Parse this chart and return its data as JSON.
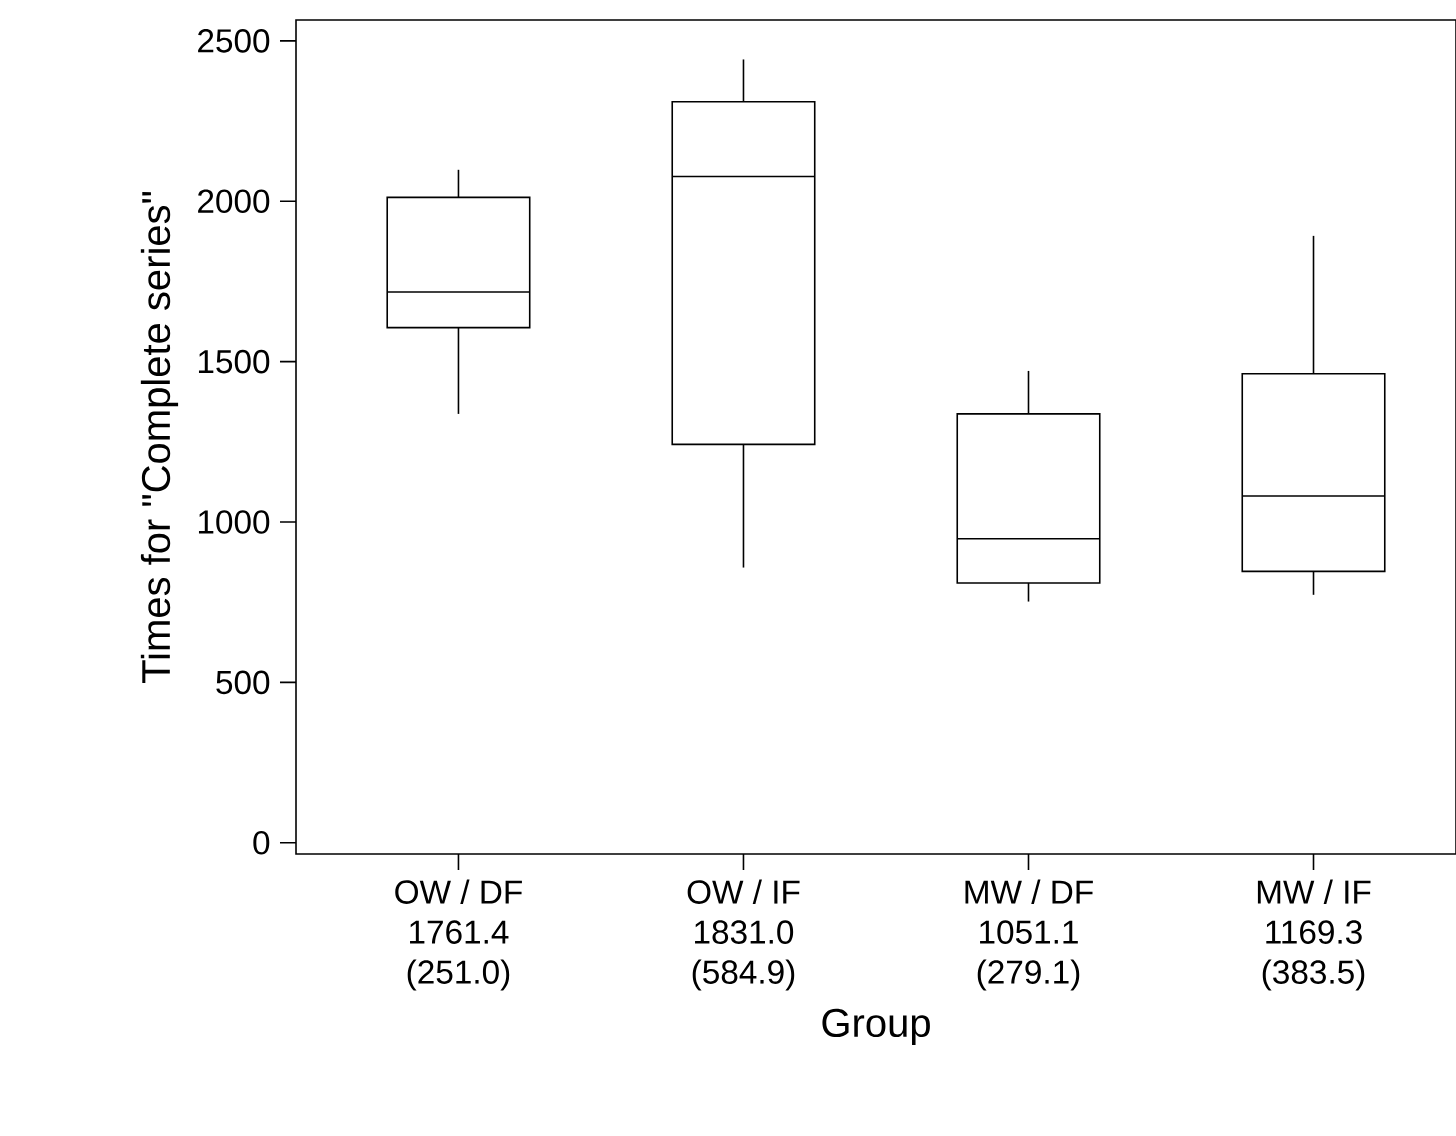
{
  "chart_data": {
    "type": "box",
    "xlabel": "Group",
    "ylabel": "Times for \"Complete series\"",
    "categories": [
      "OW / DF",
      "OW / IF",
      "MW / DF",
      "MW / IF"
    ],
    "boxes": [
      {
        "low": 1337,
        "q1": 1606,
        "median": 1717,
        "q3": 2012,
        "high": 2098
      },
      {
        "low": 858,
        "q1": 1242,
        "median": 2077,
        "q3": 2310,
        "high": 2442
      },
      {
        "low": 752,
        "q1": 810,
        "median": 948,
        "q3": 1337,
        "high": 1471
      },
      {
        "low": 773,
        "q1": 846,
        "median": 1081,
        "q3": 1462,
        "high": 1892
      }
    ],
    "annotations": [
      "1761.4",
      "(251.0)",
      "1831.0",
      "(584.9)",
      "1051.1",
      "(279.1)",
      "1169.3",
      "(383.5)"
    ],
    "ylim": [
      -35,
      2565
    ],
    "yticks": [
      0,
      500,
      1000,
      1500,
      2000,
      2500
    ]
  }
}
